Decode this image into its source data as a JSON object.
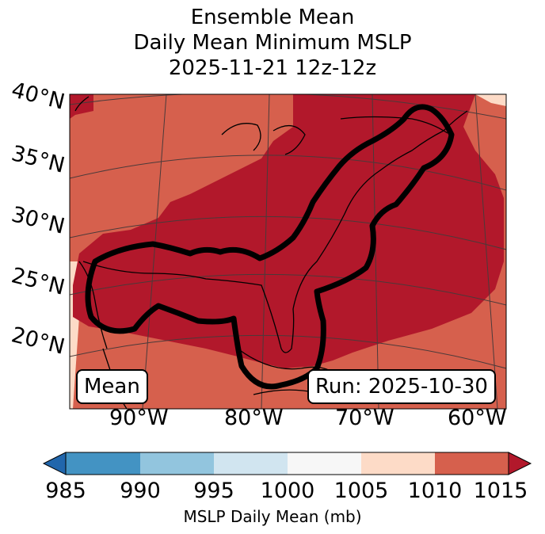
{
  "title_lines": [
    "Ensemble Mean",
    "Daily Mean Minimum MSLP",
    "2025-11-21 12z-12z"
  ],
  "lat_labels": [
    "40°N",
    "35°N",
    "30°N",
    "25°N",
    "20°N"
  ],
  "lon_labels": [
    "90°W",
    "80°W",
    "70°W",
    "60°W"
  ],
  "badges": {
    "left": "Mean",
    "right": "Run: 2025-10-30"
  },
  "colorbar": {
    "label": "MSLP Daily Mean (mb)",
    "ticks": [
      "985",
      "990",
      "995",
      "1000",
      "1005",
      "1010",
      "1015"
    ],
    "colors": {
      "under": "#2166ac",
      "bins": [
        "#4393c3",
        "#92c5de",
        "#d1e5f0",
        "#f7f7f7",
        "#fddbc7",
        "#d6604d"
      ],
      "over": "#b2182b"
    }
  },
  "map": {
    "colors": {
      "core": "#b2182b",
      "field": "#d6604d",
      "edge": "#fddbc7",
      "outline": "#000000",
      "coast": "#000000",
      "grid": "#4a3a3a"
    }
  }
}
